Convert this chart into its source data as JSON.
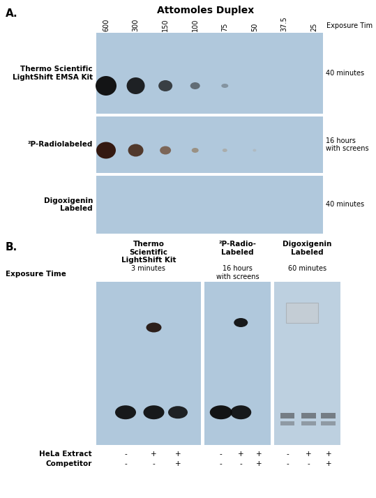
{
  "bg_color": "#ffffff",
  "panel_A_bg": "#b0c8dc",
  "panel_B_bg": "#b0c8dc",
  "panel_B_right_bg": "#bdd0e0",
  "title_A": "A.",
  "title_B": "B.",
  "attomoles_title": "Attomoles Duplex",
  "tick_labels": [
    "600",
    "300",
    "150",
    "100",
    "75",
    "50",
    "37.5",
    "25"
  ],
  "exposure_time_label": "Exposure Tim",
  "row_labels": [
    "Thermo Scientific\nLightShift EMSA Kit",
    "²P-Radiolabeled",
    "Digoxigenin\nLabeled"
  ],
  "row_exposure": [
    "40 minutes",
    "16 hours\nwith screens",
    "40 minutes"
  ],
  "col_headers_B": [
    "Thermo\nScientific\nLightShift Kit",
    "²P-Radio-\nLabeled",
    "Digoxigenin\nLabeled"
  ],
  "col_subheaders_B_1": "3 minutes",
  "col_subheaders_B_2": "16 hours\nwith screens",
  "col_subheaders_B_3": "60 minutes",
  "exposure_time_B": "Exposure Time",
  "hela_label": "HeLa Extract",
  "competitor_label": "Competitor",
  "hela_signs": [
    [
      "-",
      "+",
      "+"
    ],
    [
      "-",
      "+",
      "+"
    ],
    [
      "-",
      "+",
      "+"
    ]
  ],
  "competitor_signs": [
    [
      "-",
      "-",
      "+"
    ],
    [
      "-",
      "-",
      "+"
    ],
    [
      "-",
      "-",
      "+"
    ]
  ]
}
